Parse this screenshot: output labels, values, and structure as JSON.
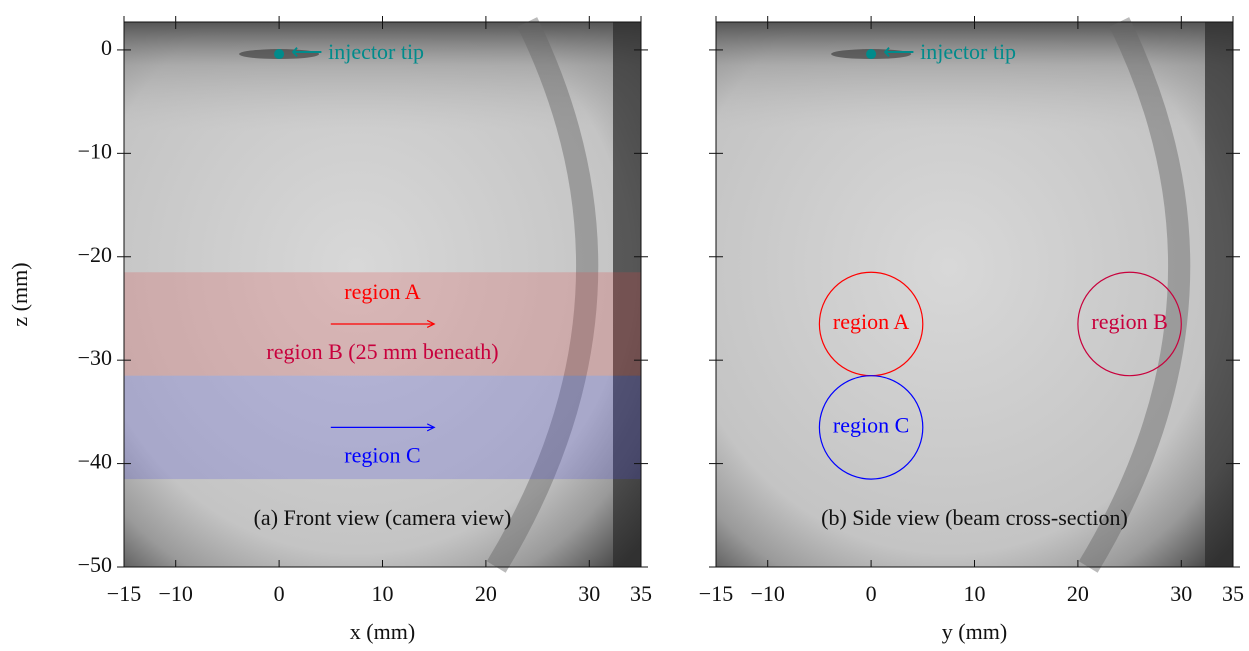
{
  "chart_data": [
    {
      "type": "image",
      "caption": "(a) Front view (camera view)",
      "xlabel": "x (mm)",
      "ylabel": "z (mm)",
      "xlim": [
        -15,
        35
      ],
      "ylim": [
        -50,
        2.7
      ],
      "xticks": [
        {
          "value": -15,
          "label": "−15"
        },
        {
          "value": -10,
          "label": "−10"
        },
        0,
        10,
        20,
        30,
        35
      ],
      "yticks": [
        0,
        {
          "value": -10,
          "label": "−10"
        },
        {
          "value": -20,
          "label": "−20"
        },
        {
          "value": -30,
          "label": "−30"
        },
        {
          "value": -40,
          "label": "−40"
        },
        {
          "value": -50,
          "label": "−50"
        }
      ],
      "point": {
        "x": 0,
        "z": -0.4,
        "label": "⟵ injector tip",
        "color": "#008b8b"
      },
      "bands": [
        {
          "z": [
            -21.5,
            -31.5
          ],
          "color": "rgba(225,70,70,0.22)",
          "arrow_x": [
            5,
            15
          ],
          "arrow_color": "#ff0000",
          "label_above": "region A",
          "label_above_color": "#ff0000",
          "label_below": "region B (25 mm beneath)",
          "label_below_color": "#c8003c"
        },
        {
          "z": [
            -31.5,
            -41.5
          ],
          "color": "rgba(70,70,225,0.22)",
          "arrow_x": [
            5,
            15
          ],
          "arrow_color": "#0000ff",
          "label_below": "region C",
          "label_below_color": "#0000ff"
        }
      ]
    },
    {
      "type": "image",
      "caption": "(b) Side view (beam cross-section)",
      "xlabel": "y (mm)",
      "xlim": [
        -15,
        35
      ],
      "ylim": [
        -50,
        2.7
      ],
      "xticks": [
        {
          "value": -15,
          "label": "−15"
        },
        {
          "value": -10,
          "label": "−10"
        },
        0,
        10,
        20,
        30,
        35
      ],
      "yticks": [
        0,
        -10,
        -20,
        -30,
        -40,
        -50
      ],
      "point": {
        "x": 0,
        "z": -0.4,
        "label": "⟵ injector tip",
        "color": "#008b8b"
      },
      "circles": [
        {
          "label": "region A",
          "x": 0,
          "z": -26.5,
          "radius": 5,
          "color": "#ff0000"
        },
        {
          "label": "region B",
          "x": 25,
          "z": -26.5,
          "radius": 5,
          "color": "#c8003c"
        },
        {
          "label": "region C",
          "x": 0,
          "z": -36.5,
          "radius": 5,
          "color": "#0000ff"
        }
      ]
    }
  ]
}
